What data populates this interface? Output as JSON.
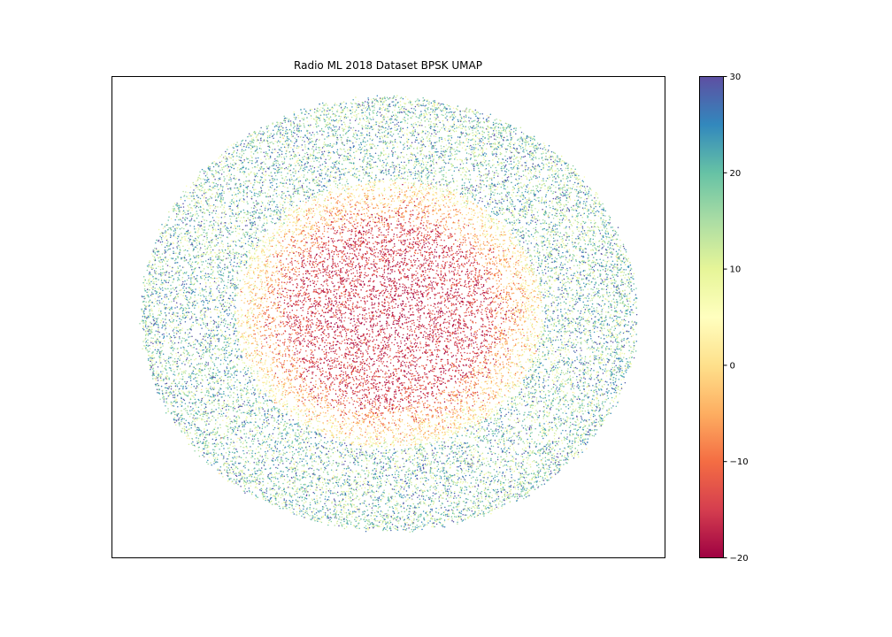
{
  "chart_data": {
    "type": "scatter",
    "title": "Radio ML 2018 Dataset BPSK UMAP",
    "xlabel": "",
    "ylabel": "",
    "axes_ticks_visible": false,
    "grid": false,
    "colormap": "Spectral",
    "color_variable_range": [
      -20,
      30
    ],
    "colorbar": {
      "ticks": [
        -20,
        -10,
        0,
        10,
        20,
        30
      ],
      "tick_labels": [
        "−20",
        "−10",
        "0",
        "10",
        "20",
        "30"
      ],
      "stops": [
        "#9e0142",
        "#d53e4f",
        "#f46d43",
        "#fdae61",
        "#fee08b",
        "#ffffbf",
        "#e6f598",
        "#abdda4",
        "#66c2a5",
        "#3288bd",
        "#5e4fa2"
      ]
    },
    "distribution": {
      "shape": "elliptical cloud; low values concentrated in the core, high values in the outer ring",
      "approx_points_rendered": 26000
    }
  }
}
